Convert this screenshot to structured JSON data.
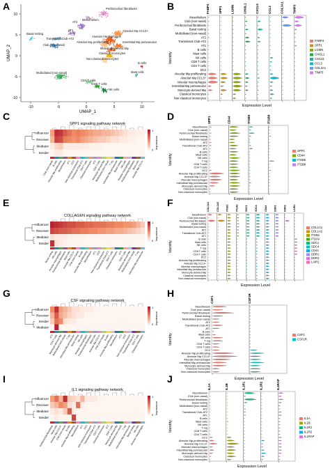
{
  "panels": {
    "A": {
      "letter": "A",
      "xlabel": "UMAP_1",
      "ylabel": "UMAP_2",
      "xticks": [
        "-10",
        "-5",
        "0",
        "5",
        "10"
      ],
      "yticks": [
        "10",
        "5",
        "0",
        "-5",
        "-10"
      ],
      "clusters": [
        {
          "label": "Peribronchial fibroblasts",
          "color": "#e377c2"
        },
        {
          "label": "Mesothelium",
          "color": "#bc80bd"
        },
        {
          "label": "AT2",
          "color": "#9467bd"
        },
        {
          "label": "AT1",
          "color": "#8c6bb1"
        },
        {
          "label": "Basal resting",
          "color": "#17becf"
        },
        {
          "label": "Transitional Club-AT2",
          "color": "#6baed6"
        },
        {
          "label": "Club (non-nasal)",
          "color": "#3182bd"
        },
        {
          "label": "Alveolar Mφ CCL3+",
          "color": "#fd8d3c"
        },
        {
          "label": "Alveolar macrophages",
          "color": "#e6550d"
        },
        {
          "label": "Alveolar Mφ proliferating",
          "color": "#fdae6b"
        },
        {
          "label": "Interstitial Mφ perivascular",
          "color": "#f16913"
        },
        {
          "label": "Monocyte-derived Mφ",
          "color": "#d94801"
        },
        {
          "label": "Classical monocytes",
          "color": "#e6ab02"
        },
        {
          "label": "Non-classical monocytes",
          "color": "#ffbb78"
        },
        {
          "label": "B cells",
          "color": "#d62728"
        },
        {
          "label": "Mast cells",
          "color": "#17a2b8"
        },
        {
          "label": "Multiciliated (non-nasal)",
          "color": "#31a354"
        },
        {
          "label": "CD4 T cells",
          "color": "#74c476"
        },
        {
          "label": "CD8 T cells",
          "color": "#2ca02c"
        },
        {
          "label": "NK cells",
          "color": "#006d2c"
        }
      ]
    },
    "B": {
      "letter": "B",
      "genes": [
        "FABP4",
        "SPP1",
        "LGMN",
        "CHI3L1",
        "CXCL5",
        "CCL3",
        "COL3A1",
        "TIMP3"
      ],
      "gene_colors": [
        "#f8766d",
        "#d39200",
        "#93aa00",
        "#00ba38",
        "#00c19f",
        "#00b9e3",
        "#619cff",
        "#db72fb"
      ],
      "ylabel": "Identity",
      "xlabel": "Expression Level"
    },
    "C": {
      "letter": "C",
      "title": "SPP1 signaling pathway network",
      "roles": [
        "Influencer",
        "Receiver",
        "Mediator",
        "Sender"
      ],
      "legend_title": "Importance",
      "legend_max": "1",
      "legend_min": "0"
    },
    "D": {
      "letter": "D",
      "genes": [
        "SPP1",
        "CD44",
        "ITGB5",
        "ITGB8"
      ],
      "gene_colors": [
        "#f8766d",
        "#7cae00",
        "#00bfc4",
        "#c77cff"
      ],
      "ylabel": "Identity",
      "xlabel": "Expression Level"
    },
    "E": {
      "letter": "E",
      "title": "COLLAGEN signaling pathway network",
      "roles": [
        "Influencer",
        "Receiver",
        "Mediator",
        "Sender"
      ],
      "legend_title": "Importance",
      "legend_max": "1",
      "legend_min": "0"
    },
    "F": {
      "letter": "F",
      "genes": [
        "COL1A1",
        "COL1A2",
        "ITGB1",
        "ITGAV",
        "SDC1",
        "SDC4",
        "CD44",
        "DDR1",
        "DDR2",
        "LAIR1"
      ],
      "gene_colors": [
        "#f8766d",
        "#d89000",
        "#a3a500",
        "#39b600",
        "#00bf7d",
        "#00bfc4",
        "#00b0f6",
        "#9590ff",
        "#e76bf3",
        "#ff62bc"
      ],
      "ylabel": "Identity",
      "xlabel": "Expression Level"
    },
    "G": {
      "letter": "G",
      "title": "CSF signaling pathway network",
      "roles": [
        "Influencer",
        "Receiver",
        "Sender",
        "Mediator"
      ],
      "legend_title": "Importance",
      "legend_max": "1",
      "legend_min": "0"
    },
    "H": {
      "letter": "H",
      "genes": [
        "CSF1",
        "CSF1R"
      ],
      "gene_colors": [
        "#f8766d",
        "#00bfc4"
      ],
      "ylabel": "Identity",
      "xlabel": "Expression Level"
    },
    "I": {
      "letter": "I",
      "title": "IL1 signaling pathway network",
      "roles": [
        "Influencer",
        "Receiver",
        "Mediator",
        "Sender"
      ],
      "legend_title": "Importance",
      "legend_max": "1",
      "legend_min": "0"
    },
    "J": {
      "letter": "J",
      "genes": [
        "IL1A",
        "IL1B",
        "IL1R1",
        "IL1R2",
        "IL1RAP"
      ],
      "gene_colors": [
        "#f8766d",
        "#a3a500",
        "#00bf7d",
        "#00b0f6",
        "#e76bf3"
      ],
      "ylabel": "Identity",
      "xlabel": "Expression Level"
    }
  },
  "identities": [
    "Mesothelium",
    "Club (non-nasal)",
    "Peribronchial fibroblasts",
    "Basal resting",
    "Multiciliated (non-nasal)",
    "AT2",
    "Transitional Club-AT2",
    "AT1",
    "B cells",
    "Mast cells",
    "NK cells",
    "T reg",
    "CD8 T cells",
    "CD4 T cells",
    "DC2",
    "Alveolar Mφ proliferating",
    "Alveolar Mφ CCL3+",
    "Alveolar macrophages",
    "Interstitial Mφ perivascular",
    "Monocyte-derived Mφ",
    "Classical monocytes",
    "Non-classical monocytes"
  ],
  "identities_b": [
    "Mesothelium",
    "Club (non-nasal)",
    "Peribronchial fibroblasts",
    "Basal resting",
    "Multiciliated (non-nasal)",
    "AT2",
    "Transitional Club-AT2",
    "AT1",
    "B cells",
    "Mast cells",
    "NK cells",
    "CD8 T cells",
    "CD4 T cells",
    "DC2",
    "Alveolar Mφ proliferating",
    "Alveolar Mφ CCL3+",
    "Alveolar macrophages",
    "Interstitial Mφ perivascular",
    "Monocyte-derived Mφ",
    "Classical monocytes",
    "Non-classical monocytes"
  ],
  "heatmap_colors": {
    "high": "#b2182b",
    "mid": "#ef8a62",
    "low": "#fff5f0"
  },
  "palette": [
    "#e41a1c",
    "#377eb8",
    "#4daf4a",
    "#984ea3",
    "#ff7f00",
    "#a65628",
    "#f781bf",
    "#17becf",
    "#66c2a5",
    "#fc8d62",
    "#8da0cb",
    "#e78ac3",
    "#a6d854",
    "#ffd92f",
    "#e5c494",
    "#1f78b4",
    "#33a02c",
    "#fb9a99",
    "#cab2d6",
    "#6a3d9a",
    "#b15928",
    "#80b1d3"
  ],
  "heatmaps": {
    "C": [
      [
        0.4,
        0.9,
        0.85,
        0.7,
        0.6,
        0.5,
        0.55,
        0.5,
        0.45,
        0.4,
        0.35,
        0.35,
        0.3,
        0.3,
        0.25,
        0.2,
        0.15,
        0.1,
        0.05,
        0.05,
        0.02,
        0.02
      ],
      [
        0.3,
        0.8,
        0.75,
        0.55,
        0.5,
        0.45,
        0.5,
        0.4,
        0.35,
        0.3,
        0.25,
        0.2,
        0.2,
        0.15,
        0.1,
        0.1,
        0.05,
        0.05,
        0.02,
        0.02,
        0.0,
        0.0
      ],
      [
        0.05,
        0.15,
        0.2,
        0.05,
        0.05,
        0.05,
        0.05,
        0.05,
        0.05,
        0.02,
        0.02,
        0.02,
        0.0,
        0.0,
        0.0,
        0.0,
        0.0,
        0.0,
        0.0,
        0.0,
        0.0,
        0.0
      ],
      [
        0.0,
        0.05,
        0.05,
        0.0,
        0.0,
        0.0,
        0.0,
        0.0,
        0.0,
        0.0,
        0.0,
        0.0,
        0.0,
        0.0,
        0.0,
        0.0,
        0.0,
        0.0,
        0.0,
        0.0,
        0.0,
        0.0
      ]
    ],
    "E": [
      [
        0.95,
        0.9,
        0.85,
        0.8,
        0.75,
        0.75,
        0.7,
        0.7,
        0.65,
        0.65,
        0.6,
        0.6,
        0.6,
        0.55,
        0.55,
        0.5,
        0.5,
        0.45,
        0.45,
        0.4,
        0.3,
        0.2
      ],
      [
        0.8,
        0.75,
        0.7,
        0.7,
        0.65,
        0.6,
        0.6,
        0.55,
        0.55,
        0.5,
        0.5,
        0.45,
        0.45,
        0.4,
        0.4,
        0.35,
        0.35,
        0.3,
        0.25,
        0.2,
        0.15,
        0.1
      ],
      [
        0.1,
        0.05,
        0.05,
        0.05,
        0.02,
        0.02,
        0.02,
        0.02,
        0.0,
        0.0,
        0.0,
        0.0,
        0.0,
        0.0,
        0.0,
        0.0,
        0.0,
        0.0,
        0.0,
        0.0,
        0.0,
        0.0
      ],
      [
        0.9,
        0.1,
        0.05,
        0.02,
        0.0,
        0.0,
        0.0,
        0.0,
        0.0,
        0.0,
        0.0,
        0.0,
        0.0,
        0.0,
        0.0,
        0.0,
        0.0,
        0.0,
        0.0,
        0.0,
        0.0,
        0.0
      ]
    ],
    "G": [
      [
        0.5,
        0.9,
        0.4,
        0.3,
        0.2,
        0.1,
        0.1,
        0.05,
        0.05,
        0.05,
        0.0,
        0.0,
        0.0,
        0.0,
        0.0,
        0.0,
        0.0,
        0.0,
        0.0,
        0.0,
        0.0,
        0.0
      ],
      [
        0.3,
        0.7,
        0.35,
        0.25,
        0.15,
        0.1,
        0.05,
        0.05,
        0.0,
        0.0,
        0.0,
        0.0,
        0.0,
        0.0,
        0.0,
        0.0,
        0.0,
        0.0,
        0.0,
        0.0,
        0.0,
        0.0
      ],
      [
        0.2,
        0.6,
        0.5,
        0.1,
        0.05,
        0.05,
        0.0,
        0.0,
        0.0,
        0.0,
        0.0,
        0.0,
        0.0,
        0.0,
        0.0,
        0.0,
        0.0,
        0.0,
        0.0,
        0.0,
        0.0,
        0.0
      ],
      [
        0.0,
        0.95,
        0.0,
        0.0,
        0.0,
        0.0,
        0.0,
        0.0,
        0.0,
        0.0,
        0.0,
        0.0,
        0.0,
        0.0,
        0.0,
        0.0,
        0.0,
        0.0,
        0.0,
        0.0,
        0.0,
        0.0
      ]
    ],
    "I": [
      [
        0.4,
        0.6,
        0.3,
        0.9,
        0.2,
        0.15,
        0.1,
        0.3,
        0.05,
        0.05,
        0.05,
        0.0,
        0.0,
        0.0,
        0.0,
        0.0,
        0.0,
        0.0,
        0.0,
        0.0,
        0.0,
        0.0
      ],
      [
        0.2,
        0.3,
        0.5,
        0.4,
        0.1,
        0.05,
        0.6,
        0.05,
        0.0,
        0.0,
        0.0,
        0.0,
        0.0,
        0.0,
        0.0,
        0.0,
        0.0,
        0.0,
        0.0,
        0.0,
        0.0,
        0.0
      ],
      [
        0.05,
        0.1,
        0.05,
        0.2,
        0.7,
        0.05,
        0.0,
        0.0,
        0.0,
        0.0,
        0.0,
        0.0,
        0.0,
        0.0,
        0.0,
        0.0,
        0.0,
        0.0,
        0.0,
        0.0,
        0.0,
        0.0
      ],
      [
        0.0,
        0.05,
        0.0,
        0.0,
        0.0,
        0.8,
        0.0,
        0.0,
        0.0,
        0.0,
        0.0,
        0.0,
        0.0,
        0.0,
        0.0,
        0.0,
        0.0,
        0.0,
        0.0,
        0.0,
        0.0,
        0.0
      ]
    ]
  },
  "violin_profiles": {
    "B": [
      [
        0.1,
        0.0,
        0.0,
        0.05,
        0.0,
        0.0,
        0.6,
        0.9
      ],
      [
        0.1,
        0.0,
        0.05,
        0.2,
        0.3,
        0.0,
        0.1,
        0.4
      ],
      [
        0.05,
        0.0,
        0.0,
        0.1,
        0.05,
        0.0,
        0.9,
        0.7
      ],
      [
        0.05,
        0.0,
        0.05,
        0.3,
        0.5,
        0.0,
        0.05,
        0.2
      ],
      [
        0.05,
        0.0,
        0.0,
        0.1,
        0.05,
        0.0,
        0.0,
        0.1
      ],
      [
        0.1,
        0.0,
        0.05,
        0.4,
        0.2,
        0.0,
        0.0,
        0.1
      ],
      [
        0.05,
        0.05,
        0.05,
        0.5,
        0.3,
        0.0,
        0.0,
        0.1
      ],
      [
        0.05,
        0.0,
        0.0,
        0.05,
        0.05,
        0.0,
        0.0,
        0.2
      ],
      [
        0.0,
        0.0,
        0.0,
        0.0,
        0.0,
        0.0,
        0.0,
        0.0
      ],
      [
        0.0,
        0.0,
        0.0,
        0.0,
        0.0,
        0.0,
        0.0,
        0.0
      ],
      [
        0.0,
        0.0,
        0.0,
        0.0,
        0.0,
        0.3,
        0.0,
        0.0
      ],
      [
        0.0,
        0.0,
        0.0,
        0.0,
        0.0,
        0.2,
        0.0,
        0.0
      ],
      [
        0.0,
        0.0,
        0.0,
        0.0,
        0.0,
        0.1,
        0.0,
        0.0
      ],
      [
        0.0,
        0.0,
        0.05,
        0.0,
        0.0,
        0.1,
        0.0,
        0.0
      ],
      [
        0.8,
        0.6,
        0.8,
        0.3,
        0.1,
        0.3,
        0.0,
        0.0
      ],
      [
        0.9,
        0.7,
        0.9,
        0.4,
        0.2,
        0.9,
        0.0,
        0.0
      ],
      [
        0.95,
        0.5,
        0.8,
        0.3,
        0.1,
        0.3,
        0.0,
        0.0
      ],
      [
        0.3,
        0.3,
        0.9,
        0.2,
        0.05,
        0.2,
        0.0,
        0.0
      ],
      [
        0.4,
        0.6,
        0.8,
        0.3,
        0.1,
        0.3,
        0.0,
        0.0
      ],
      [
        0.05,
        0.2,
        0.3,
        0.1,
        0.05,
        0.4,
        0.0,
        0.0
      ],
      [
        0.05,
        0.1,
        0.3,
        0.05,
        0.0,
        0.2,
        0.0,
        0.0
      ]
    ]
  }
}
